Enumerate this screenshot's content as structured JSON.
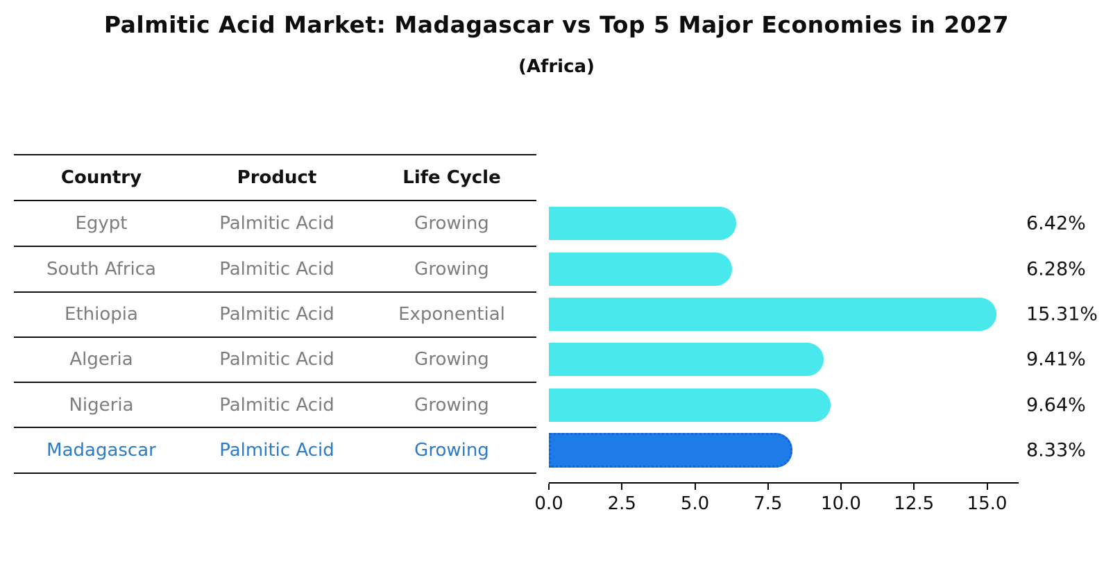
{
  "title": "Palmitic Acid Market: Madagascar vs Top 5 Major Economies in 2027",
  "subtitle": "(Africa)",
  "table": {
    "headers": [
      "Country",
      "Product",
      "Life Cycle"
    ],
    "rows": [
      {
        "country": "Egypt",
        "product": "Palmitic Acid",
        "life_cycle": "Growing",
        "highlight": false
      },
      {
        "country": "South Africa",
        "product": "Palmitic Acid",
        "life_cycle": "Growing",
        "highlight": false
      },
      {
        "country": "Ethiopia",
        "product": "Palmitic Acid",
        "life_cycle": "Exponential",
        "highlight": false
      },
      {
        "country": "Algeria",
        "product": "Palmitic Acid",
        "life_cycle": "Growing",
        "highlight": false
      },
      {
        "country": "Nigeria",
        "product": "Palmitic Acid",
        "life_cycle": "Growing",
        "highlight": false
      },
      {
        "country": "Madagascar",
        "product": "Palmitic Acid",
        "life_cycle": "Growing",
        "highlight": true
      }
    ]
  },
  "chart_data": {
    "type": "bar",
    "orientation": "horizontal",
    "title": "Palmitic Acid Market: Madagascar vs Top 5 Major Economies in 2027",
    "subtitle": "(Africa)",
    "categories": [
      "Egypt",
      "South Africa",
      "Ethiopia",
      "Algeria",
      "Nigeria",
      "Madagascar"
    ],
    "values": [
      6.42,
      6.28,
      15.31,
      9.41,
      9.64,
      8.33
    ],
    "value_labels": [
      "6.42%",
      "6.28%",
      "15.31%",
      "9.41%",
      "9.64%",
      "8.33%"
    ],
    "highlight_index": 5,
    "x_tick_labels": [
      "0.0",
      "2.5",
      "5.0",
      "7.5",
      "10.0",
      "12.5",
      "15.0"
    ],
    "x_tick_values": [
      0,
      2.5,
      5,
      7.5,
      10,
      12.5,
      15
    ],
    "xlim": [
      0,
      16.1
    ],
    "grid": false,
    "legend": "none"
  },
  "colors": {
    "bar": "#48E8EC",
    "highlight_bar": "#1E7CE8",
    "highlight_bar_edge": "#1563D2",
    "highlight_text": "#2B7BC8",
    "table_text": "#7D7D7D",
    "header_text": "#111111",
    "axis": "#000000",
    "background": "#FFFFFF"
  }
}
